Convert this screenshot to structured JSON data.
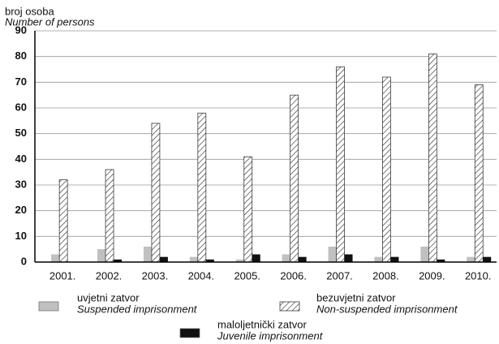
{
  "chart_data": {
    "type": "bar",
    "y_label": "broj osoba",
    "y_label_en": "Number of persons",
    "categories": [
      "2001.",
      "2002.",
      "2003.",
      "2004.",
      "2005.",
      "2006.",
      "2007.",
      "2008.",
      "2009.",
      "2010."
    ],
    "series": [
      {
        "name": "uvjetni zatvor",
        "name_en": "Suspended imprisonment",
        "color": "#c0c0c0",
        "values": [
          3,
          5,
          6,
          2,
          1,
          3,
          6,
          2,
          6,
          2
        ]
      },
      {
        "name": "bezuvjetni zatvor",
        "name_en": "Non-suspended imprisonment",
        "color": "hatch",
        "values": [
          32,
          36,
          54,
          58,
          41,
          65,
          76,
          72,
          81,
          69
        ]
      },
      {
        "name": "maloljetnički zatvor",
        "name_en": "Juvenile imprisonment",
        "color": "#111111",
        "values": [
          0,
          1,
          2,
          1,
          3,
          2,
          3,
          2,
          1,
          2
        ]
      }
    ],
    "ylim": [
      0,
      90
    ],
    "yticks": [
      0,
      10,
      20,
      30,
      40,
      50,
      60,
      70,
      80,
      90
    ],
    "grid": true
  }
}
